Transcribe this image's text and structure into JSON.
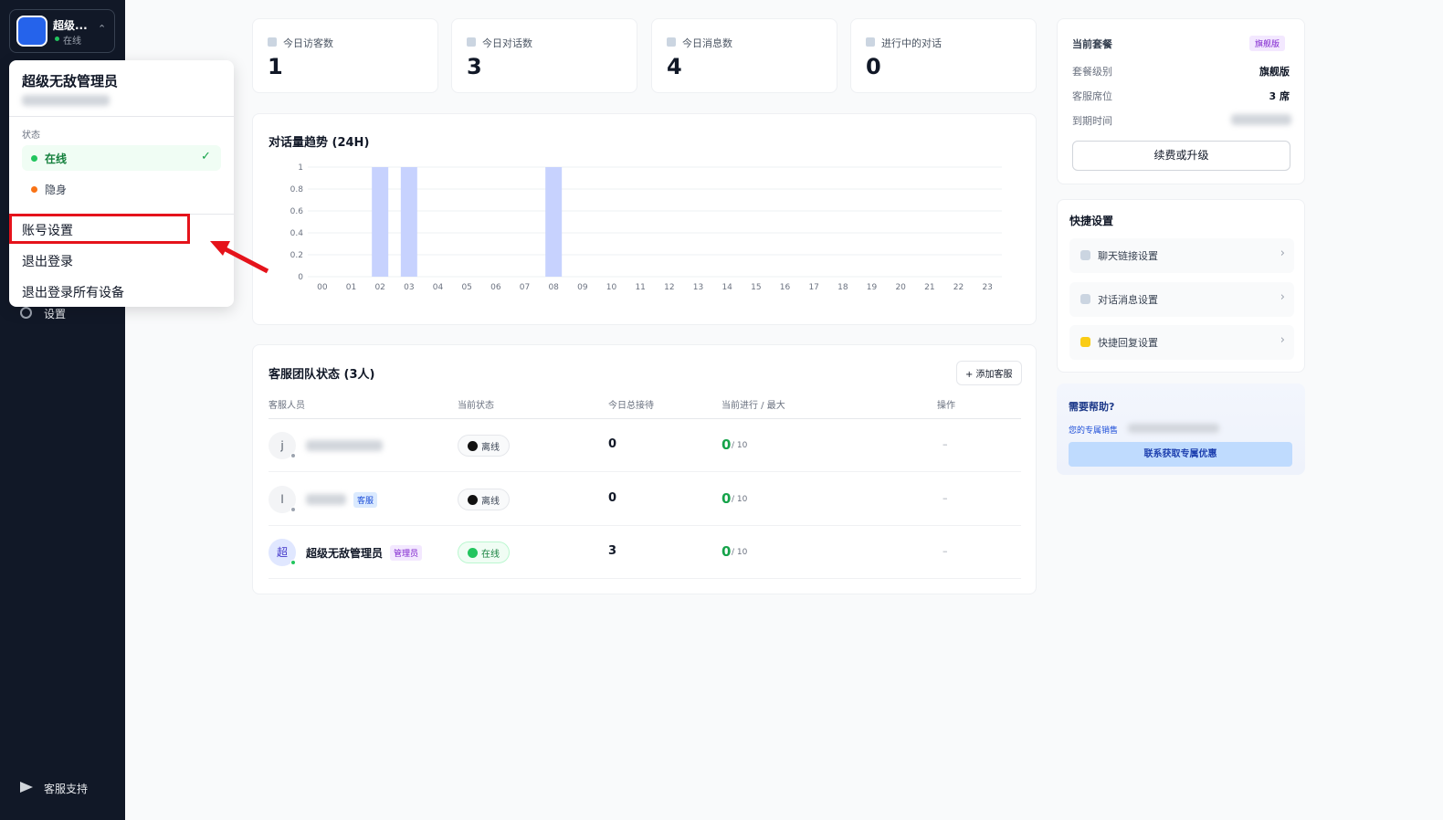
{
  "sidebar": {
    "user_name": "超级...",
    "status": "在线",
    "settings": "设置",
    "support": "客服支持"
  },
  "dropdown": {
    "name": "超级无敌管理员",
    "status_label": "状态",
    "options": [
      {
        "label": "在线",
        "color": "#22c55e",
        "selected": true
      },
      {
        "label": "隐身",
        "color": "#f97316",
        "selected": false
      }
    ],
    "items": [
      "账号设置",
      "退出登录",
      "退出登录所有设备"
    ]
  },
  "stats": [
    {
      "label": "今日访客数",
      "value": 1
    },
    {
      "label": "今日对话数",
      "value": 3
    },
    {
      "label": "今日消息数",
      "value": 4
    },
    {
      "label": "进行中的对话",
      "value": 0
    }
  ],
  "chart_data": {
    "type": "bar",
    "title": "对话量趋势 (24H)",
    "categories": [
      "00",
      "01",
      "02",
      "03",
      "04",
      "05",
      "06",
      "07",
      "08",
      "09",
      "10",
      "11",
      "12",
      "13",
      "14",
      "15",
      "16",
      "17",
      "18",
      "19",
      "20",
      "21",
      "22",
      "23"
    ],
    "values": [
      0,
      0,
      1,
      1,
      0,
      0,
      0,
      0,
      1,
      0,
      0,
      0,
      0,
      0,
      0,
      0,
      0,
      0,
      0,
      0,
      0,
      0,
      0,
      0
    ],
    "color": "#c7d2fe",
    "ylim": [
      0,
      1
    ],
    "yticks": [
      0,
      0.2,
      0.4,
      0.6,
      0.8,
      1
    ],
    "grid": true
  },
  "team": {
    "title": "客服团队状态 (3人)",
    "add_button": "+ 添加客服",
    "headers": [
      "客服人员",
      "当前状态",
      "今日总接待",
      "当前进行 / 最大",
      "操作"
    ],
    "rows": [
      {
        "initial": "j",
        "status": "离线",
        "online": false,
        "today": 0,
        "current": 0,
        "max_label": "/ 10",
        "action": "–"
      },
      {
        "initial": "l",
        "badge": "客服",
        "status": "离线",
        "online": false,
        "today": 0,
        "current": 0,
        "max_label": "/ 10",
        "action": "–"
      },
      {
        "initial": "超",
        "name": "超级无敌管理员",
        "badge": "管理员",
        "status": "在线",
        "online": true,
        "today": 3,
        "current": 0,
        "max_label": "/ 10",
        "action": "–"
      }
    ]
  },
  "plan": {
    "title": "当前套餐",
    "badge": "旗舰版",
    "rows": [
      {
        "label": "套餐级别",
        "value": "旗舰版"
      },
      {
        "label": "客服席位",
        "value": "3 席"
      },
      {
        "label": "到期时间"
      }
    ],
    "button": "续费或升级"
  },
  "quick": {
    "title": "快捷设置",
    "items": [
      "聊天链接设置",
      "对话消息设置",
      "快捷回复设置"
    ]
  },
  "help": {
    "title": "需要帮助?",
    "sales_label": "您的专属销售",
    "button": "联系获取专属优惠"
  }
}
